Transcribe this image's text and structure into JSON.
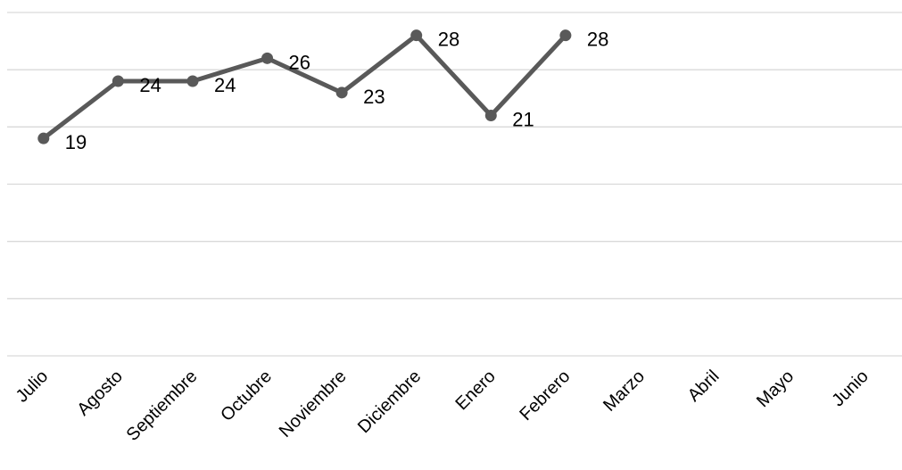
{
  "chart_data": {
    "type": "line",
    "title": "",
    "xlabel": "",
    "ylabel": "",
    "categories": [
      "Julio",
      "Agosto",
      "Septiembre",
      "Octubre",
      "Noviembre",
      "Diciembre",
      "Enero",
      "Febrero",
      "Marzo",
      "Abril",
      "Mayo",
      "Junio"
    ],
    "series": [
      {
        "values": [
          19,
          24,
          24,
          26,
          23,
          28,
          21,
          28,
          null,
          null,
          null,
          null
        ],
        "color": "#595959"
      }
    ],
    "ylim": [
      0,
      30
    ],
    "y_gridline_step": 5,
    "grid": true,
    "data_labels": true,
    "markers": true
  }
}
